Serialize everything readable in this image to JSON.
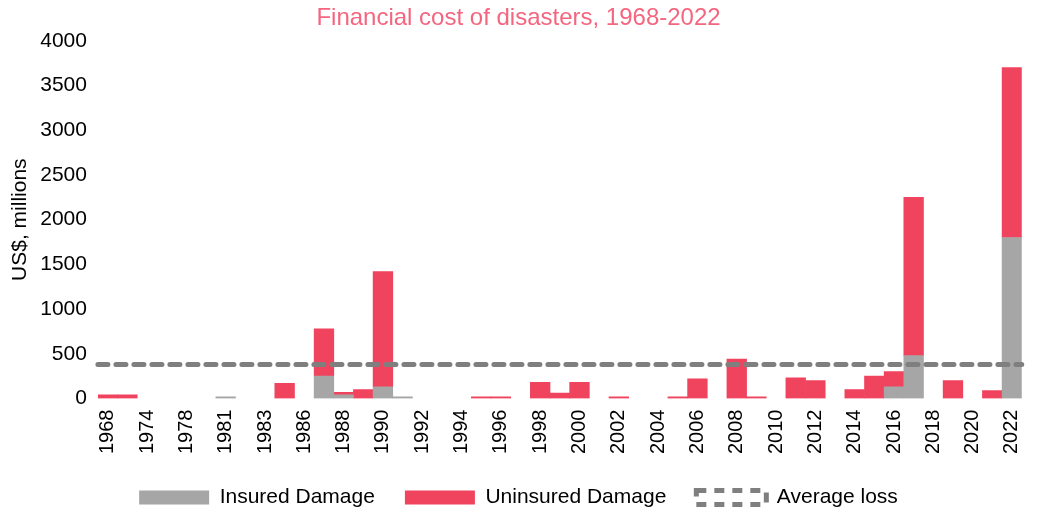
{
  "chart_data": {
    "type": "bar",
    "title": "Financial cost of disasters, 1968-2022",
    "ylabel": "US$, millions",
    "categories": [
      "1968",
      null,
      "1974",
      null,
      "1978",
      null,
      "1981",
      null,
      "1983",
      null,
      "1986",
      null,
      "1988",
      null,
      "1990",
      null,
      "1992",
      null,
      "1994",
      null,
      "1996",
      null,
      "1998",
      null,
      "2000",
      null,
      "2002",
      null,
      "2004",
      null,
      "2006",
      null,
      "2008",
      null,
      "2010",
      null,
      "2012",
      null,
      "2014",
      null,
      "2016",
      null,
      "2018",
      null,
      "2020",
      null,
      "2022"
    ],
    "stacked": true,
    "series": [
      {
        "name": "Insured Damage",
        "color": "#a6a6a6",
        "values": [
          null,
          null,
          null,
          null,
          null,
          null,
          20,
          null,
          null,
          null,
          null,
          250,
          40,
          null,
          130,
          20,
          null,
          null,
          null,
          null,
          null,
          null,
          null,
          null,
          null,
          null,
          null,
          null,
          null,
          null,
          null,
          null,
          null,
          null,
          null,
          null,
          null,
          null,
          null,
          null,
          130,
          480,
          null,
          null,
          null,
          null,
          1800
        ]
      },
      {
        "name": "Uninsured Damage",
        "color": "#f0435e",
        "values": [
          40,
          40,
          null,
          null,
          null,
          null,
          null,
          null,
          null,
          170,
          null,
          530,
          30,
          100,
          1290,
          null,
          null,
          null,
          null,
          20,
          20,
          null,
          180,
          60,
          180,
          null,
          20,
          null,
          null,
          20,
          220,
          null,
          440,
          20,
          null,
          230,
          200,
          null,
          100,
          250,
          170,
          1770,
          null,
          200,
          null,
          90,
          1900
        ]
      }
    ],
    "ref_lines": [
      {
        "axis": "y",
        "value": 380,
        "label": "Average loss",
        "color": "#7f7f7f",
        "line_style": "dashed"
      }
    ],
    "ylim": [
      0,
      4000
    ],
    "yticks": [
      0,
      500,
      1000,
      1500,
      2000,
      2500,
      3000,
      3500,
      4000
    ],
    "grid": false,
    "legend": "bottom"
  }
}
